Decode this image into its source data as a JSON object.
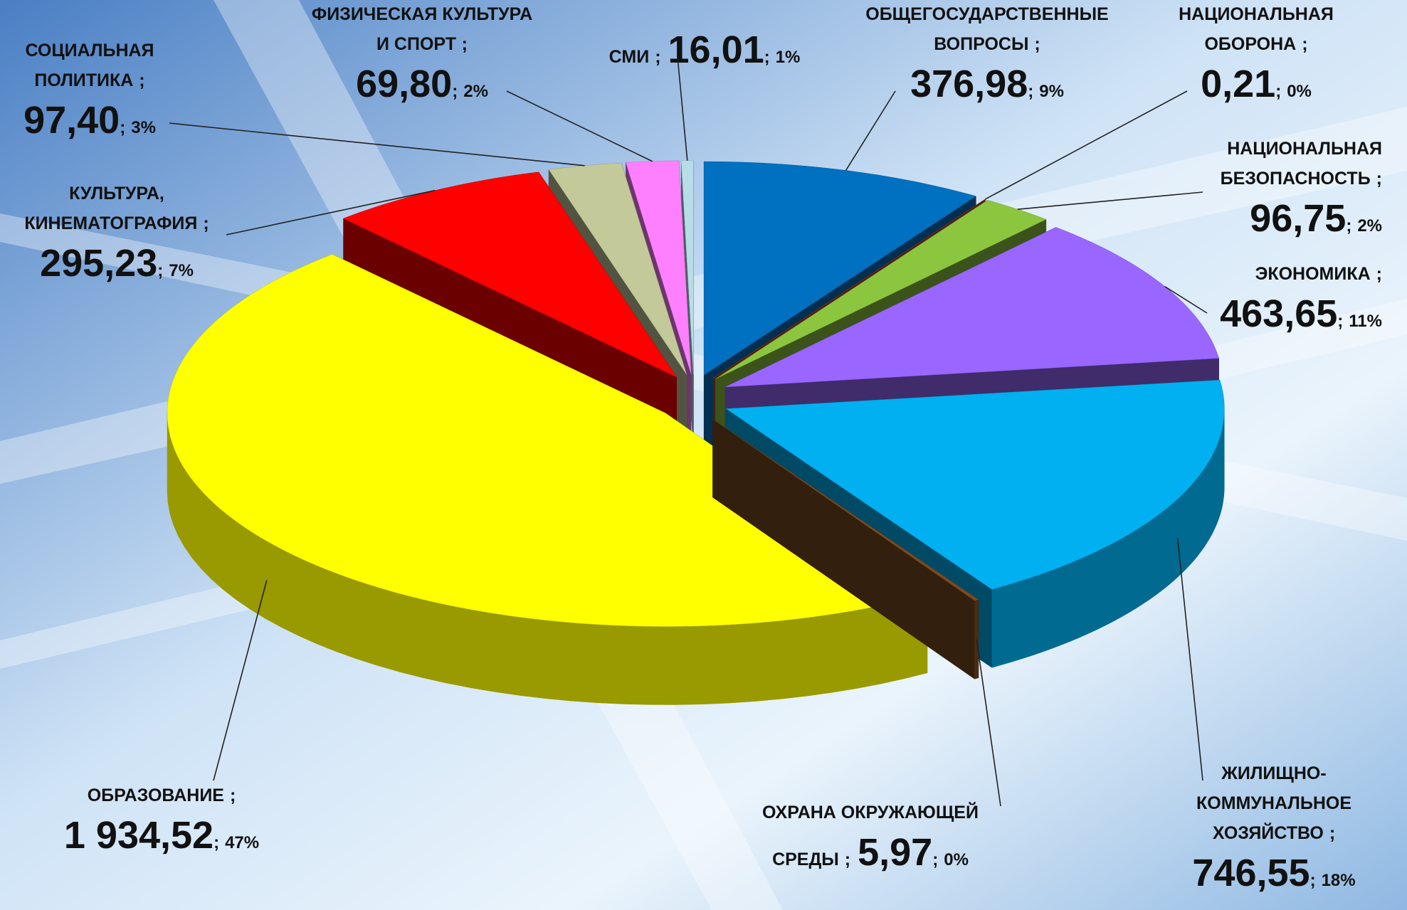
{
  "chart_data": {
    "type": "pie3d",
    "separator": ";",
    "categories": [
      [
        "ОБЩЕГОСУДАРСТВЕННЫЕ",
        "ВОПРОСЫ"
      ],
      [
        "НАЦИОНАЛЬНАЯ",
        "ОБОРОНА"
      ],
      [
        "НАЦИОНАЛЬНАЯ",
        "БЕЗОПАСНОСТЬ"
      ],
      [
        "ЭКОНОМИКА"
      ],
      [
        "ЖИЛИЩНО-",
        "КОММУНАЛЬНОЕ",
        "ХОЗЯЙСТВО"
      ],
      [
        "ОХРАНА ОКРУЖАЮЩЕЙ",
        "СРЕДЫ"
      ],
      [
        "ОБРАЗОВАНИЕ"
      ],
      [
        "КУЛЬТУРА,",
        "КИНЕМАТОГРАФИЯ"
      ],
      [
        "СОЦИАЛЬНАЯ",
        "ПОЛИТИКА"
      ],
      [
        "ФИЗИЧЕСКАЯ КУЛЬТУРА",
        "И СПОРТ"
      ],
      [
        "СМИ"
      ]
    ],
    "values": [
      376.98,
      0.21,
      96.75,
      463.65,
      746.55,
      5.97,
      1934.52,
      295.23,
      97.4,
      69.8,
      16.01
    ],
    "value_labels": [
      "376,98",
      "0,21",
      "96,75",
      "463,65",
      "746,55",
      "5,97",
      "1 934,52",
      "295,23",
      "97,40",
      "69,80",
      "16,01"
    ],
    "percent_labels": [
      "9%",
      "0%",
      "2%",
      "11%",
      "18%",
      "0%",
      "47%",
      "7%",
      "3%",
      "2%",
      "1%"
    ],
    "colors": [
      "#0070c0",
      "#b5452b",
      "#8cc63f",
      "#9966ff",
      "#00b0f0",
      "#7a4a1f",
      "#ffff00",
      "#ff0000",
      "#c4c99a",
      "#ff80ff",
      "#b7dee8"
    ]
  }
}
